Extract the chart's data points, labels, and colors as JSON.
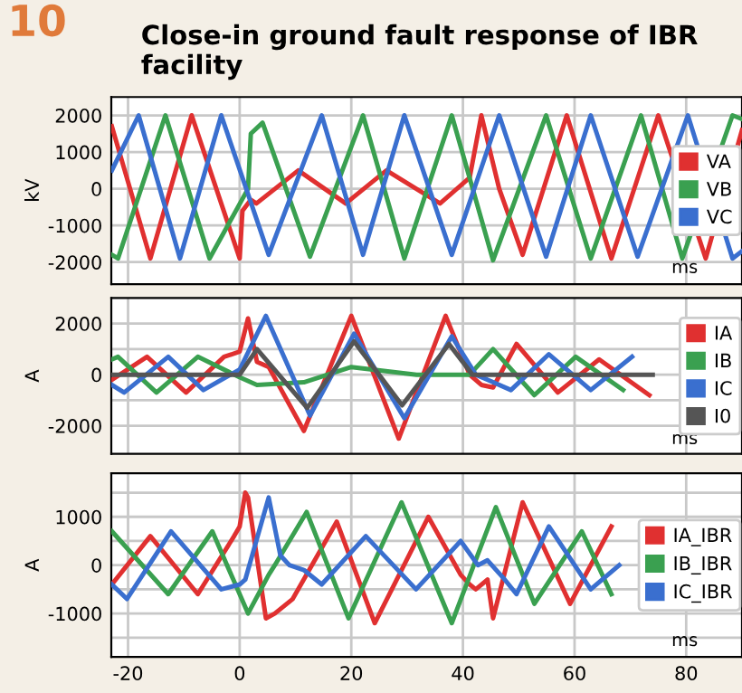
{
  "chart_data": [
    {
      "type": "line",
      "title": "Close-in ground fault response of IBR facility",
      "annotations": [
        "10"
      ],
      "ylabel": "kV",
      "xlabel": "ms",
      "xlim": [
        -23,
        90
      ],
      "xticks": [
        {
          "value": -20,
          "label": null
        },
        {
          "value": 0,
          "label": null
        },
        {
          "value": 20,
          "label": null
        },
        {
          "value": 40,
          "label": null
        },
        {
          "value": 60,
          "label": null
        },
        {
          "value": 80,
          "label": null
        }
      ],
      "ylim": [
        -2600,
        2500
      ],
      "yticks": [
        -2000,
        -1000,
        0,
        1000,
        2000
      ],
      "tick_labels": "y",
      "grid": true,
      "legend": "right",
      "series": [
        {
          "name": "VA",
          "color": "#e03030",
          "x": [
            -22.9,
            -16,
            -8.6,
            0,
            0.5,
            2,
            3,
            10.5,
            19,
            26.3,
            35.9,
            41.2,
            43.3,
            46.5,
            50.7,
            58.6,
            66.6,
            75,
            83.5,
            90
          ],
          "values": [
            1700,
            -1900,
            2000,
            -1900,
            -600,
            -300,
            -400,
            500,
            -400,
            500,
            -400,
            300,
            2000,
            0,
            -1800,
            2000,
            -1900,
            2000,
            -1900,
            1600
          ]
        },
        {
          "name": "VB",
          "color": "#3aa050",
          "x": [
            -22.9,
            -21.8,
            -13.3,
            -5.4,
            1.5,
            2,
            4.1,
            12.6,
            22.1,
            29.5,
            38,
            45.4,
            54.9,
            62.9,
            71.9,
            79.3,
            88.3,
            90
          ],
          "values": [
            -1800,
            -1900,
            2000,
            -1900,
            0,
            1500,
            1800,
            -1850,
            2000,
            -1900,
            2000,
            -1950,
            2000,
            -1900,
            2000,
            -1900,
            2000,
            1900
          ]
        },
        {
          "name": "VC",
          "color": "#3a6fcf",
          "x": [
            -22.9,
            -18.1,
            -10.7,
            -3.3,
            5.2,
            14.7,
            22.1,
            29.5,
            38,
            46.5,
            54.9,
            62.9,
            71.3,
            80.3,
            88.3,
            90
          ],
          "values": [
            500,
            2000,
            -1900,
            2000,
            -1800,
            2000,
            -1800,
            2000,
            -1800,
            2000,
            -1850,
            2000,
            -1850,
            2000,
            -1900,
            -1700
          ]
        }
      ]
    },
    {
      "type": "line",
      "ylabel": "A",
      "xlabel": "ms",
      "xlim": [
        -23,
        90
      ],
      "xticks": [
        {
          "value": -20,
          "label": null
        },
        {
          "value": 0,
          "label": null
        },
        {
          "value": 20,
          "label": null
        },
        {
          "value": 40,
          "label": null
        },
        {
          "value": 60,
          "label": null
        },
        {
          "value": 80,
          "label": null
        }
      ],
      "ylim": [
        -3100,
        3000
      ],
      "yticks": [
        -2000,
        {
          "value": -1000,
          "label": null
        },
        0,
        {
          "value": 1000,
          "label": null
        },
        2000
      ],
      "tick_labels": "y",
      "grid": true,
      "legend": "right",
      "series": [
        {
          "name": "IA",
          "color": "#e03030",
          "x": [
            -22.9,
            -16.6,
            -9.6,
            -2.8,
            0,
            1.5,
            3.1,
            5.2,
            11.5,
            20,
            28.5,
            36.9,
            41.2,
            43.3,
            45.4,
            49.6,
            57,
            64.4,
            73.4
          ],
          "values": [
            -200,
            700,
            -700,
            700,
            900,
            2200,
            500,
            300,
            -2200,
            2300,
            -2500,
            2300,
            0,
            -400,
            -500,
            1200,
            -700,
            600,
            -800
          ]
        },
        {
          "name": "IB",
          "color": "#3aa050",
          "x": [
            -22.9,
            -21.8,
            -14.9,
            -7.5,
            0,
            3.1,
            11.5,
            20,
            31.7,
            41.2,
            45.4,
            52.8,
            60.2,
            68.7
          ],
          "values": [
            600,
            700,
            -700,
            700,
            -100,
            -400,
            -300,
            300,
            0,
            0,
            1000,
            -800,
            700,
            -600
          ]
        },
        {
          "name": "IC",
          "color": "#3a6fcf",
          "x": [
            -22.9,
            -20.7,
            -12.8,
            -6.5,
            0,
            4.7,
            12.6,
            20.5,
            29.5,
            38,
            42.3,
            44.4,
            48.6,
            55.4,
            62.9,
            70.3
          ],
          "values": [
            -400,
            -700,
            700,
            -600,
            200,
            2300,
            -1600,
            1600,
            -1700,
            1500,
            0,
            -200,
            -600,
            800,
            -600,
            700
          ]
        },
        {
          "name": "I0",
          "color": "#555555",
          "x": [
            -22.9,
            0,
            3.1,
            12.1,
            20.5,
            29.1,
            37.5,
            41.7,
            74
          ],
          "values": [
            0,
            0,
            1000,
            -1300,
            1300,
            -1200,
            1200,
            0,
            0
          ]
        }
      ]
    },
    {
      "type": "line",
      "ylabel": "A",
      "xlabel": "ms",
      "xlim": [
        -23,
        90
      ],
      "xticks": [
        -20,
        0,
        20,
        40,
        60,
        80
      ],
      "ylim": [
        -1900,
        1900
      ],
      "yticks": [
        {
          "value": -1500,
          "label": null
        },
        -1000,
        {
          "value": -500,
          "label": null
        },
        0,
        {
          "value": 500,
          "label": null
        },
        1000,
        {
          "value": 1500,
          "label": null
        }
      ],
      "grid": true,
      "legend": "right",
      "series": [
        {
          "name": "IA_IBR",
          "color": "#e03030",
          "x": [
            -22.9,
            -16,
            -7.5,
            -1,
            0,
            1,
            1.5,
            4.7,
            6.3,
            9.5,
            17.4,
            24.2,
            33.8,
            39.6,
            41.2,
            42.3,
            44.4,
            45.4,
            50.7,
            59.2,
            66.6
          ],
          "values": [
            -400,
            600,
            -600,
            600,
            800,
            1500,
            1400,
            -1100,
            -1000,
            -700,
            900,
            -1200,
            1000,
            -200,
            -400,
            -500,
            -300,
            -1100,
            1300,
            -800,
            800
          ]
        },
        {
          "name": "IB_IBR",
          "color": "#3aa050",
          "x": [
            -22.9,
            -12.8,
            -4.9,
            1.5,
            5.2,
            6.3,
            12,
            19.5,
            29,
            38,
            45.9,
            52.8,
            61.3,
            66.6
          ],
          "values": [
            700,
            -600,
            700,
            -1000,
            -200,
            0,
            1100,
            -1100,
            1300,
            -1200,
            1200,
            -800,
            700,
            -600
          ]
        },
        {
          "name": "IC_IBR",
          "color": "#3a6fcf",
          "x": [
            -22.9,
            -20.2,
            -12.3,
            -3.3,
            0,
            1,
            5.2,
            7.3,
            8.9,
            11.5,
            14.7,
            22.6,
            31.6,
            39.6,
            42.7,
            44.4,
            47.5,
            49.6,
            55.4,
            62.9,
            68
          ],
          "values": [
            -400,
            -700,
            700,
            -500,
            -400,
            -300,
            1400,
            200,
            0,
            -100,
            -400,
            600,
            -500,
            500,
            0,
            100,
            -300,
            -600,
            800,
            -500,
            0
          ]
        }
      ]
    }
  ]
}
